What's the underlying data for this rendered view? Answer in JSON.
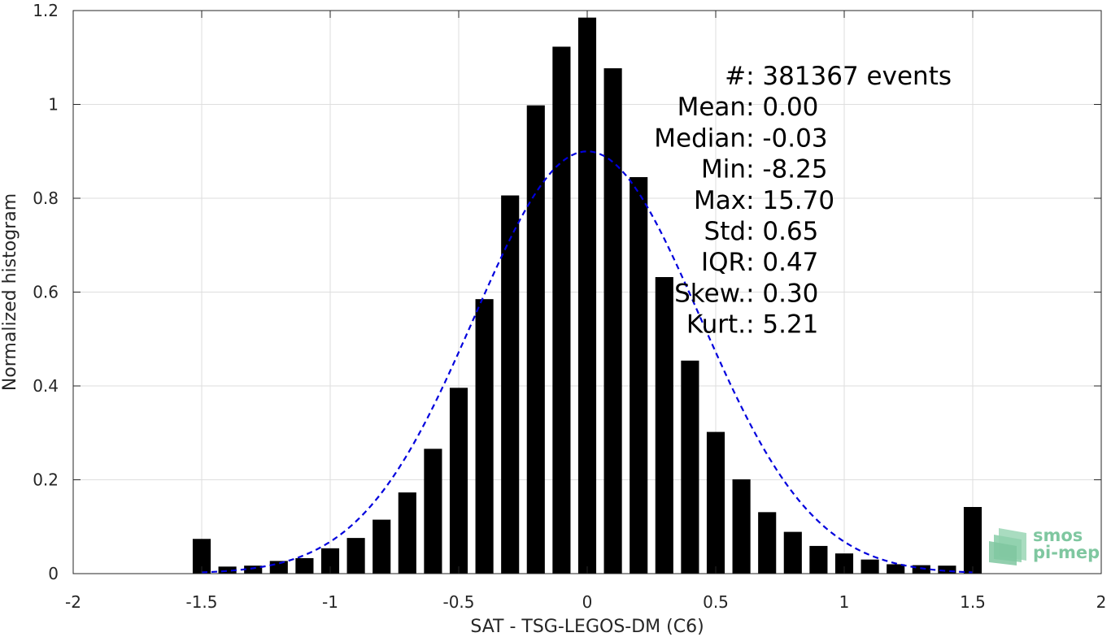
{
  "chart_data": {
    "type": "bar",
    "xlabel": "SAT - TSG-LEGOS-DM (C6)",
    "ylabel": "Normalized histogram",
    "xlim": [
      -2,
      2
    ],
    "ylim": [
      0,
      1.2
    ],
    "xticks": [
      -2,
      -1.5,
      -1,
      -0.5,
      0,
      0.5,
      1,
      1.5,
      2
    ],
    "xtick_labels": [
      "-2",
      "-1.5",
      "-1",
      "-0.5",
      "0",
      "0.5",
      "1",
      "1.5",
      "2"
    ],
    "yticks": [
      0,
      0.2,
      0.4,
      0.6,
      0.8,
      1,
      1.2
    ],
    "ytick_labels": [
      "0",
      "0.2",
      "0.4",
      "0.6",
      "0.8",
      "1",
      "1.2"
    ],
    "grid": true,
    "bin_width": 0.1,
    "bar_width_fraction": 0.7,
    "bar_color": "#000000",
    "x": [
      -1.5,
      -1.4,
      -1.3,
      -1.2,
      -1.1,
      -1.0,
      -0.9,
      -0.8,
      -0.7,
      -0.6,
      -0.5,
      -0.4,
      -0.3,
      -0.2,
      -0.1,
      0.0,
      0.1,
      0.2,
      0.3,
      0.4,
      0.5,
      0.6,
      0.7,
      0.8,
      0.9,
      1.0,
      1.1,
      1.2,
      1.3,
      1.4,
      1.5
    ],
    "values": [
      0.074,
      0.015,
      0.017,
      0.027,
      0.033,
      0.054,
      0.076,
      0.115,
      0.173,
      0.266,
      0.396,
      0.585,
      0.806,
      0.998,
      1.123,
      1.185,
      1.077,
      0.845,
      0.632,
      0.454,
      0.302,
      0.201,
      0.131,
      0.089,
      0.059,
      0.043,
      0.03,
      0.02,
      0.018,
      0.017,
      0.142
    ],
    "fit": {
      "type": "gaussian",
      "mean": 0.0,
      "std": 0.44,
      "peak": 0.9,
      "xrange": [
        -1.5,
        1.5
      ],
      "color": "#0000dd",
      "style": "dashed"
    },
    "annotations": [
      {
        "label": "#  ",
        "value": ": 381367 events"
      },
      {
        "label": "Mean ",
        "value": ": 0.00"
      },
      {
        "label": "Median ",
        "value": ": -0.03"
      },
      {
        "label": "Min ",
        "value": ": -8.25"
      },
      {
        "label": "Max ",
        "value": ": 15.70"
      },
      {
        "label": "Std ",
        "value": ": 0.65"
      },
      {
        "label": "IQR ",
        "value": ": 0.47"
      },
      {
        "label": "Skew. ",
        "value": ": 0.30"
      },
      {
        "label": "Kurt. ",
        "value": ": 5.21"
      }
    ]
  },
  "logo": {
    "line1": "smos",
    "line2": "pi-mep",
    "color": "#7fc7a0"
  }
}
